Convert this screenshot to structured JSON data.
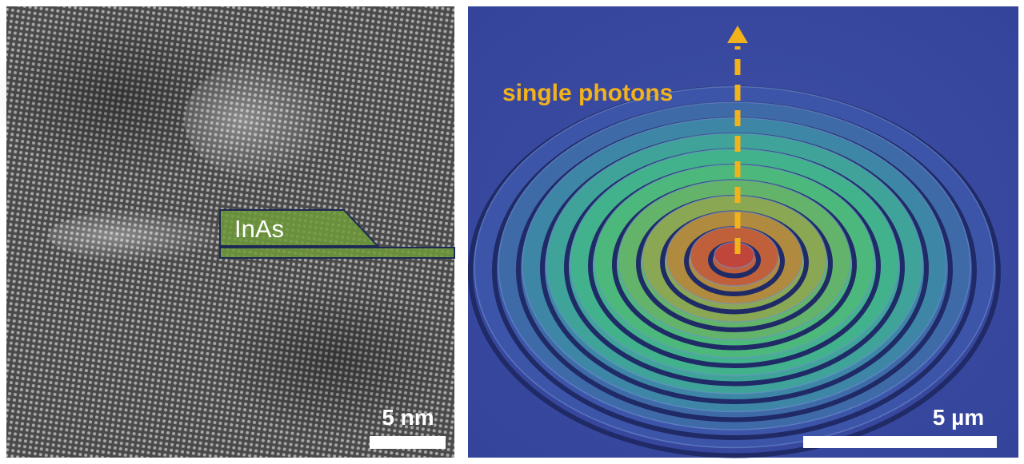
{
  "left_panel": {
    "label": "InAs",
    "scale_bar": "5 nm"
  },
  "right_panel": {
    "annotation": "single photons",
    "scale_bar": "5 µm"
  }
}
